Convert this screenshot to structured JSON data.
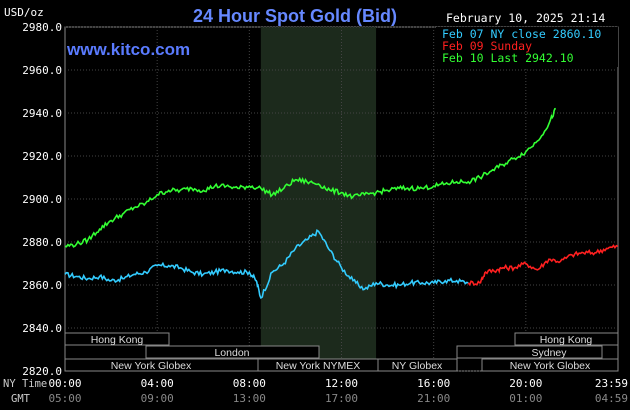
{
  "title": "24 Hour Spot Gold (Bid)",
  "website": "www.kitco.com",
  "timestamp": "February 10, 2025 21:14",
  "y_unit": "USD/oz",
  "legend": [
    {
      "label": "Feb 07 NY close 2860.10",
      "color": "#33ccff"
    },
    {
      "label": "Feb 09 Sunday",
      "color": "#ff2020"
    },
    {
      "label": "Feb 10 Last 2942.10",
      "color": "#33ff33"
    }
  ],
  "sessions": {
    "row1": [
      {
        "label": "Hong Kong"
      },
      {
        "label": "Hong Kong"
      }
    ],
    "row2": [
      {
        "label": "London"
      },
      {
        "label": "Sydney"
      }
    ],
    "row3": [
      {
        "label": "New York Globex"
      },
      {
        "label": "New York NYMEX"
      },
      {
        "label": "NY Globex"
      },
      {
        "label": "New York Globex"
      }
    ]
  },
  "time_rows": {
    "ny_label": "NY Time",
    "gmt_label": "GMT",
    "ny_ticks": [
      "00:00",
      "04:00",
      "08:00",
      "12:00",
      "16:00",
      "20:00",
      "23:59"
    ],
    "gmt_ticks": [
      "05:00",
      "09:00",
      "13:00",
      "17:00",
      "21:00",
      "01:00",
      "04:59"
    ]
  },
  "chart_data": {
    "type": "line",
    "title": "24 Hour Spot Gold (Bid)",
    "ylabel": "USD/oz",
    "xlabel": "NY Time",
    "ylim": [
      2820,
      2980
    ],
    "yticks": [
      "2980.0",
      "2960.0",
      "2940.0",
      "2920.0",
      "2900.0",
      "2880.0",
      "2860.0",
      "2840.0",
      "2820.0"
    ],
    "xlim_hours": [
      0,
      24
    ],
    "shaded_region_hours": [
      8.5,
      13.5
    ],
    "grid": true,
    "series": [
      {
        "name": "Feb 07 NY close 2860.10",
        "color": "#33ccff",
        "x_hours": [
          0,
          0.5,
          1,
          1.5,
          2,
          2.5,
          3,
          3.5,
          4,
          4.5,
          5,
          5.5,
          6,
          6.5,
          7,
          7.5,
          8,
          8.3,
          8.5,
          9,
          9.5,
          10,
          10.5,
          11,
          11.5,
          12,
          12.5,
          13,
          13.5,
          14,
          14.5,
          15,
          15.5,
          16,
          16.5,
          17,
          17.5
        ],
        "values": [
          2865,
          2864,
          2863,
          2864,
          2862,
          2863,
          2865,
          2866,
          2869,
          2869,
          2868,
          2866,
          2865,
          2866,
          2867,
          2866,
          2866,
          2862,
          2854,
          2866,
          2870,
          2877,
          2881,
          2885,
          2876,
          2868,
          2862,
          2858,
          2861,
          2860,
          2860,
          2861,
          2861,
          2861,
          2862,
          2862,
          2861
        ]
      },
      {
        "name": "Feb 09 Sunday",
        "color": "#ff2020",
        "x_hours": [
          17.5,
          18,
          18.25,
          18.75,
          19,
          19.5,
          20,
          20.5,
          21,
          21.5,
          22,
          22.5,
          23,
          23.5,
          23.99
        ],
        "values": [
          2861,
          2861,
          2866,
          2867,
          2868,
          2868,
          2870,
          2867,
          2872,
          2871,
          2874,
          2875,
          2875,
          2877,
          2878
        ]
      },
      {
        "name": "Feb 10 Last 2942.10",
        "color": "#33ff33",
        "x_hours": [
          0,
          0.5,
          1,
          1.5,
          2,
          2.5,
          3,
          3.5,
          4,
          4.5,
          5,
          5.5,
          6,
          6.5,
          7,
          7.5,
          8,
          8.5,
          9,
          9.5,
          10,
          10.5,
          11,
          11.5,
          12,
          12.5,
          13,
          13.5,
          14,
          14.5,
          15,
          15.5,
          16,
          16.5,
          17,
          17.5,
          18,
          18.5,
          19,
          19.5,
          20,
          20.5,
          21,
          21.3
        ],
        "values": [
          2878,
          2879,
          2881,
          2886,
          2890,
          2893,
          2896,
          2898,
          2902,
          2904,
          2904,
          2905,
          2904,
          2906,
          2906,
          2905,
          2906,
          2905,
          2902,
          2905,
          2909,
          2908,
          2907,
          2904,
          2903,
          2901,
          2902,
          2903,
          2904,
          2905,
          2905,
          2905,
          2906,
          2907,
          2908,
          2908,
          2910,
          2913,
          2916,
          2919,
          2922,
          2927,
          2935,
          2942
        ]
      }
    ]
  }
}
